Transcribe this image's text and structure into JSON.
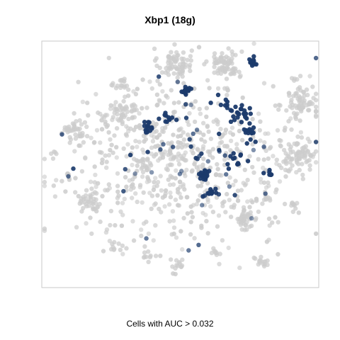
{
  "chart_data": {
    "type": "scatter",
    "title": "Xbp1 (18g)",
    "caption": "Cells with AUC > 0.032",
    "xlim": [
      0,
      100
    ],
    "ylim": [
      0,
      100
    ],
    "grid": false,
    "colors": {
      "background_cells": "#cccccc",
      "high_auc_cells": "#1b3a6b",
      "frame": "#c8c8c8"
    },
    "clusters": [
      {
        "x": 48,
        "y": 91,
        "spread": 5.5,
        "count": 70
      },
      {
        "x": 66,
        "y": 91,
        "spread": 5.5,
        "count": 70
      },
      {
        "x": 30,
        "y": 71,
        "spread": 4.5,
        "count": 45
      },
      {
        "x": 12,
        "y": 64,
        "spread": 4.5,
        "count": 40
      },
      {
        "x": 29,
        "y": 82,
        "spread": 2.8,
        "count": 18
      },
      {
        "x": 94,
        "y": 75,
        "spread": 6.0,
        "count": 70
      },
      {
        "x": 92,
        "y": 54,
        "spread": 7.0,
        "count": 80
      },
      {
        "x": 18,
        "y": 35,
        "spread": 4.2,
        "count": 35
      },
      {
        "x": 73,
        "y": 28,
        "spread": 4.5,
        "count": 45
      },
      {
        "x": 80,
        "y": 11,
        "spread": 2.6,
        "count": 15
      },
      {
        "x": 49,
        "y": 9,
        "spread": 2.4,
        "count": 12
      },
      {
        "x": 27,
        "y": 17,
        "spread": 2.2,
        "count": 10
      },
      {
        "x": 38,
        "y": 13,
        "spread": 2.2,
        "count": 10
      },
      {
        "x": 63,
        "y": 14,
        "spread": 2.0,
        "count": 8
      },
      {
        "x": 9,
        "y": 45,
        "spread": 1.8,
        "count": 6
      },
      {
        "x": 81,
        "y": 36,
        "spread": 2.2,
        "count": 10
      },
      {
        "x": 91,
        "y": 33,
        "spread": 2.0,
        "count": 8
      },
      {
        "x": 37,
        "y": 49,
        "spread": 2.6,
        "count": 12
      },
      {
        "x": 67,
        "y": 81,
        "spread": 1.6,
        "count": 5
      },
      {
        "x": 5,
        "y": 54,
        "spread": 1.6,
        "count": 5
      },
      {
        "x": 91,
        "y": 85,
        "spread": 1.5,
        "count": 5
      }
    ],
    "scattered_gray_count": 620,
    "scatter_region": {
      "x": [
        5,
        95
      ],
      "y": [
        10,
        92
      ]
    },
    "highlight_groups": [
      {
        "x": 76,
        "y": 91,
        "spread": 1.4,
        "count": 14
      },
      {
        "x": 52,
        "y": 80,
        "spread": 1.8,
        "count": 12
      },
      {
        "x": 72,
        "y": 70,
        "spread": 3.2,
        "count": 24
      },
      {
        "x": 38,
        "y": 65,
        "spread": 2.2,
        "count": 14
      },
      {
        "x": 46,
        "y": 69,
        "spread": 2.2,
        "count": 10
      },
      {
        "x": 70,
        "y": 52,
        "spread": 3.0,
        "count": 12
      },
      {
        "x": 59,
        "y": 46,
        "spread": 1.6,
        "count": 24
      },
      {
        "x": 61,
        "y": 39,
        "spread": 1.2,
        "count": 12
      },
      {
        "x": 76,
        "y": 63,
        "spread": 3.0,
        "count": 16
      },
      {
        "x": 82,
        "y": 46,
        "spread": 1.6,
        "count": 6
      },
      {
        "x": 66,
        "y": 76,
        "spread": 2.0,
        "count": 8
      }
    ],
    "scattered_highlight_count": 50
  }
}
